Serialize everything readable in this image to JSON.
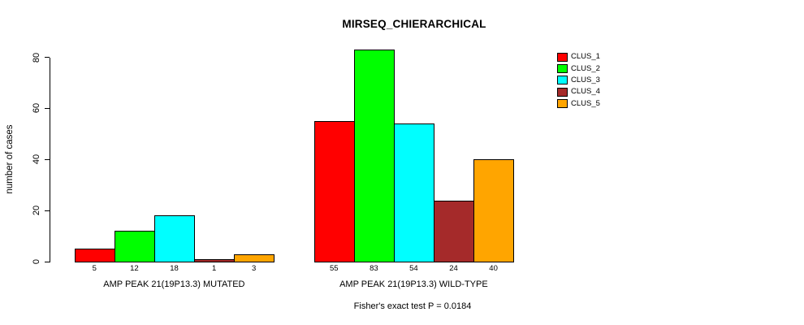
{
  "title": "MIRSEQ_CHIERARCHICAL",
  "footer": "Fisher's exact test P = 0.0184",
  "y_axis": {
    "label": "number of cases",
    "tick_labels": [
      "0",
      "20",
      "40",
      "60",
      "80"
    ]
  },
  "groups": [
    {
      "label": "AMP PEAK 21(19P13.3) MUTATED",
      "bar_labels": [
        "5",
        "12",
        "18",
        "1",
        "3"
      ]
    },
    {
      "label": "AMP PEAK 21(19P13.3) WILD-TYPE",
      "bar_labels": [
        "55",
        "83",
        "54",
        "24",
        "40"
      ]
    }
  ],
  "chart_data": {
    "type": "bar",
    "title": "MIRSEQ_CHIERARCHICAL",
    "xlabel": "",
    "ylabel": "number of cases",
    "ylim": [
      0,
      80
    ],
    "yticks": [
      0,
      20,
      40,
      60,
      80
    ],
    "grid": false,
    "legend_position": "top-right",
    "bar_value_labels": true,
    "annotation": "Fisher's exact test P = 0.0184",
    "categories": [
      "AMP PEAK 21(19P13.3) MUTATED",
      "AMP PEAK 21(19P13.3) WILD-TYPE"
    ],
    "series": [
      {
        "name": "CLUS_1",
        "color": "#FF0000",
        "values": [
          5,
          55
        ]
      },
      {
        "name": "CLUS_2",
        "color": "#00FF00",
        "values": [
          12,
          83
        ]
      },
      {
        "name": "CLUS_3",
        "color": "#00FFFF",
        "values": [
          18,
          54
        ]
      },
      {
        "name": "CLUS_4",
        "color": "#A52A2A",
        "values": [
          1,
          24
        ]
      },
      {
        "name": "CLUS_5",
        "color": "#FFA500",
        "values": [
          3,
          40
        ]
      }
    ]
  }
}
